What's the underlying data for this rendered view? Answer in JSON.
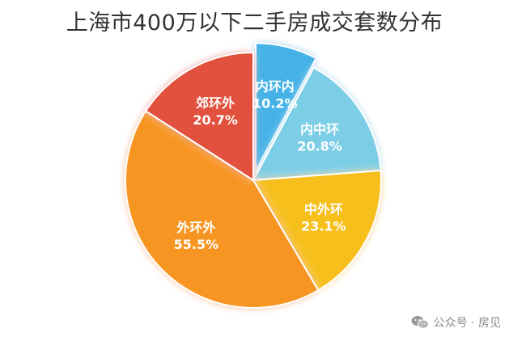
{
  "chart_data": {
    "type": "pie",
    "title": "上海市400万以下二手房成交套数分布",
    "slices": [
      {
        "label": "内环内",
        "percent_label": "10.2%",
        "value": 10.2,
        "color": "#45b2e7",
        "exploded": true
      },
      {
        "label": "内中环",
        "percent_label": "20.8%",
        "value": 20.8,
        "color": "#7ccde6"
      },
      {
        "label": "中外环",
        "percent_label": "23.1%",
        "value": 23.1,
        "color": "#f6bf1d"
      },
      {
        "label": "外环外",
        "percent_label": "55.5%",
        "value": 55.5,
        "color": "#f79524"
      },
      {
        "label": "郊环外",
        "percent_label": "20.7%",
        "value": 20.7,
        "color": "#e2513e"
      }
    ]
  },
  "watermark": {
    "text": "公众号 · 房见",
    "icon": "wechat-icon"
  }
}
